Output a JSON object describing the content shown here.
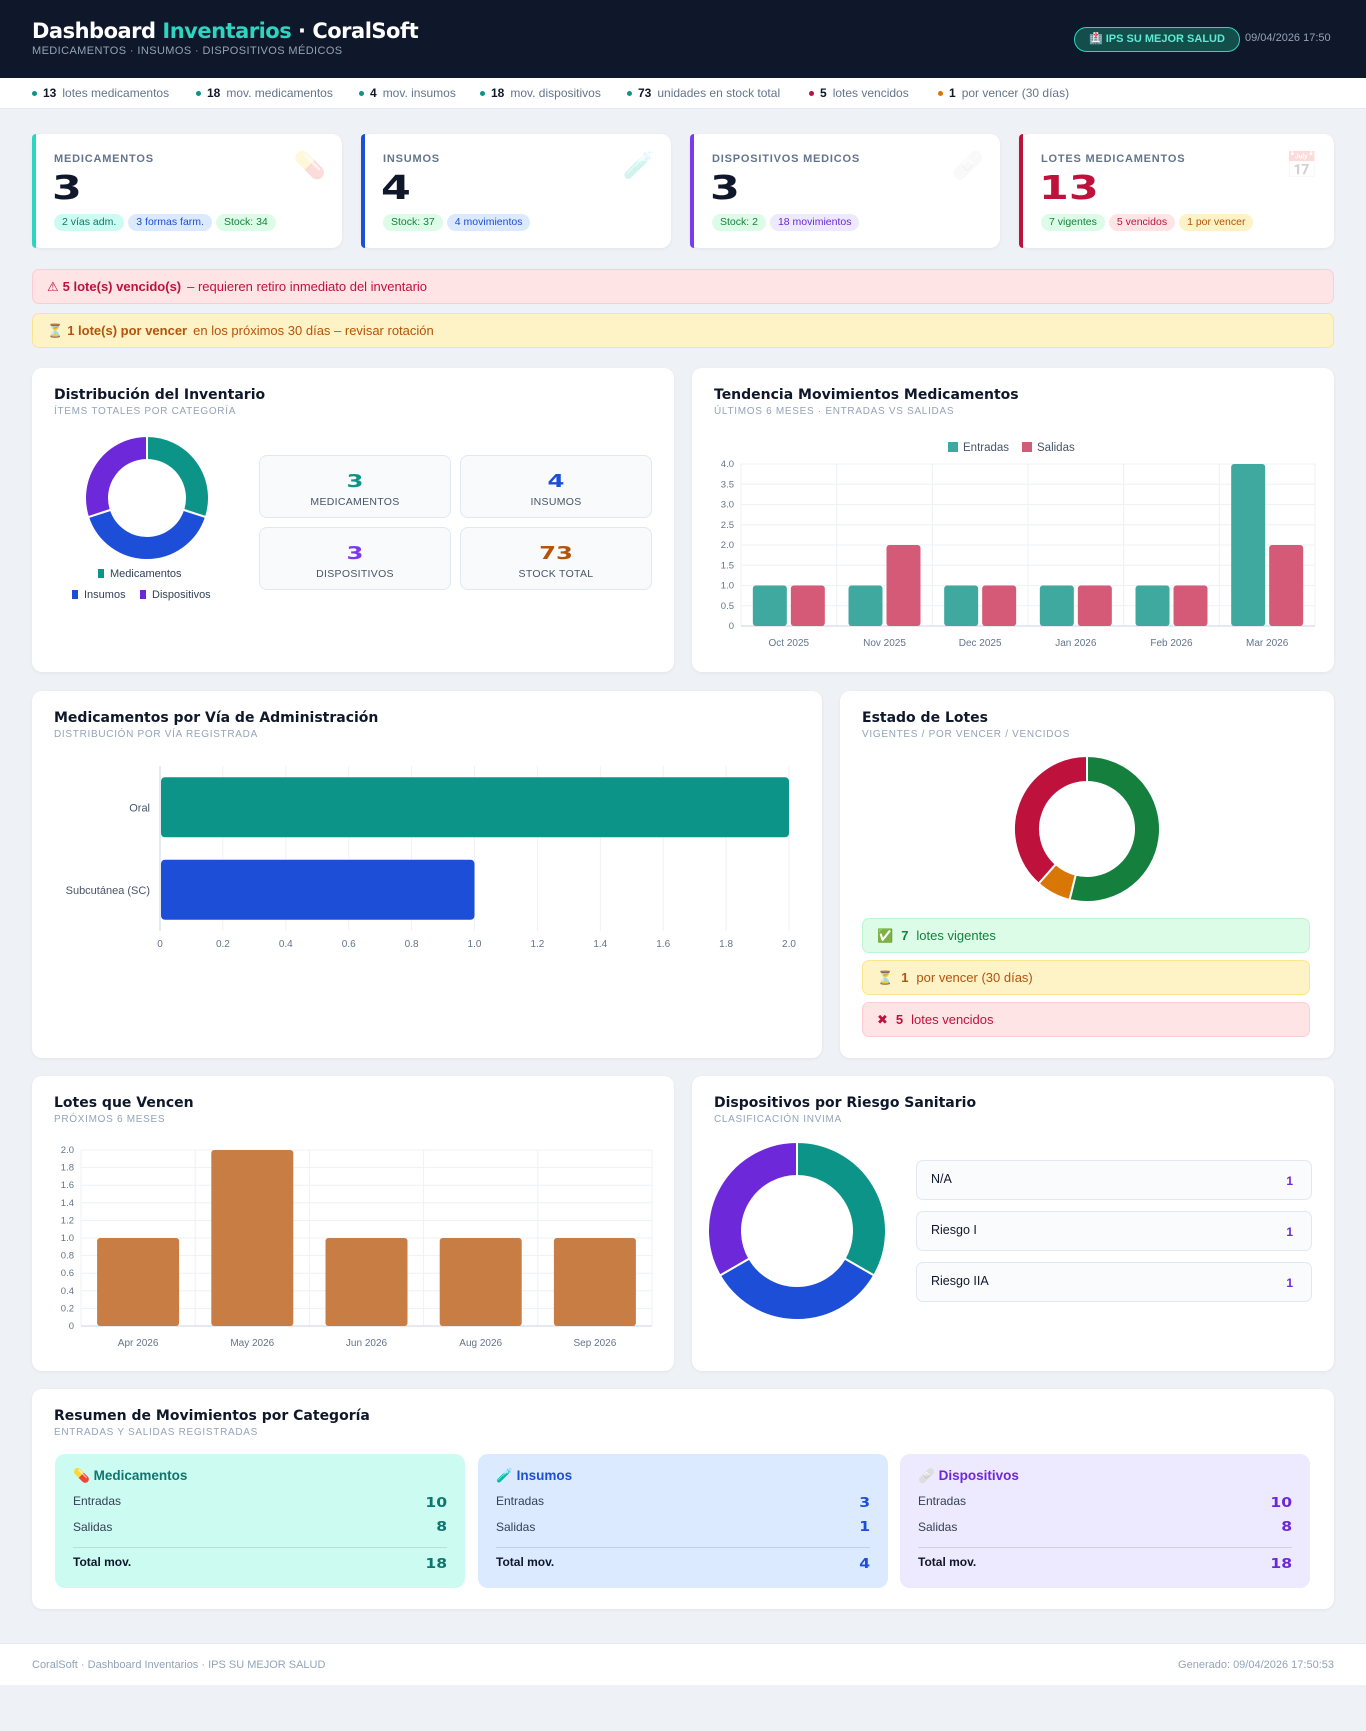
{
  "header": {
    "title_main": "Dashboard ",
    "title_accent": "Inventarios",
    "title_rest": " · CoralSoft",
    "subtitle": "MEDICAMENTOS · INSUMOS · DISPOSITIVOS MÉDICOS",
    "badge": "🏥 IPS SU MEJOR SALUD",
    "datetime": "09/04/2026 17:50"
  },
  "statbar": [
    {
      "value": "13",
      "label": "lotes medicamentos",
      "color": "#0d9488"
    },
    {
      "value": "18",
      "label": "mov. medicamentos",
      "color": "#0d9488"
    },
    {
      "value": "4",
      "label": "mov. insumos",
      "color": "#0d9488"
    },
    {
      "value": "18",
      "label": "mov. dispositivos",
      "color": "#0d9488"
    },
    {
      "value": "73",
      "label": "unidades en stock total",
      "color": "#0d9488"
    },
    {
      "value": "5",
      "label": "lotes vencidos",
      "color": "#be123c"
    },
    {
      "value": "1",
      "label": "por vencer (30 días)",
      "color": "#d97706"
    }
  ],
  "kpis": [
    {
      "label": "MEDICAMENTOS",
      "value": "3",
      "icon": "pill-icon",
      "icon_glyph": "💊",
      "accent": "#2dd4bf",
      "pills": [
        "2 vías adm.",
        "3 formas farm.",
        "Stock: 34"
      ]
    },
    {
      "label": "INSUMOS",
      "value": "4",
      "icon": "syringe-icon",
      "icon_glyph": "🧪",
      "accent": "#1d4ed8",
      "pills": [
        "Stock: 37",
        "4 movimientos"
      ]
    },
    {
      "label": "DISPOSITIVOS MEDICOS",
      "value": "3",
      "icon": "bandage-icon",
      "icon_glyph": "🩹",
      "accent": "#7c3aed",
      "pills": [
        "Stock: 2",
        "18 movimientos"
      ]
    },
    {
      "label": "LOTES MEDICAMENTOS",
      "value": "13",
      "icon": "calendar-icon",
      "icon_glyph": "📅",
      "accent": "#be123c",
      "pills": [
        "7 vigentes",
        "5 vencidos",
        "1 por vencer"
      ]
    }
  ],
  "alerts": {
    "expired": {
      "icon": "⚠",
      "strong": "5 lote(s) vencido(s)",
      "text": "– requieren retiro inmediato del inventario"
    },
    "expiring": {
      "icon": "⏳",
      "strong": "1 lote(s) por vencer",
      "text": "en los próximos 30 días – revisar rotación"
    }
  },
  "distribution": {
    "title": "Distribución del Inventario",
    "subtitle": "ÍTEMS TOTALES POR CATEGORÍA",
    "tiles": [
      {
        "value": "3",
        "label": "MEDICAMENTOS",
        "color": "#0d9488"
      },
      {
        "value": "4",
        "label": "INSUMOS",
        "color": "#1d4ed8"
      },
      {
        "value": "3",
        "label": "DISPOSITIVOS",
        "color": "#7c3aed"
      },
      {
        "value": "73",
        "label": "STOCK TOTAL",
        "color": "#b45309"
      }
    ],
    "legend": [
      "Medicamentos",
      "Insumos",
      "Dispositivos"
    ]
  },
  "trend": {
    "title": "Tendencia Movimientos Medicamentos",
    "subtitle": "ÚLTIMOS 6 MESES · ENTRADAS VS SALIDAS"
  },
  "routes": {
    "title": "Medicamentos por Vía de Administración",
    "subtitle": "DISTRIBUCIÓN POR VÍA REGISTRADA"
  },
  "lot_state": {
    "title": "Estado de Lotes",
    "subtitle": "VIGENTES / POR VENCER / VENCIDOS",
    "rows": [
      {
        "icon": "✅",
        "value": "7",
        "label": "lotes vigentes"
      },
      {
        "icon": "⏳",
        "value": "1",
        "label": "por vencer (30 días)"
      },
      {
        "icon": "✖",
        "value": "5",
        "label": "lotes vencidos"
      }
    ]
  },
  "expiring_lots": {
    "title": "Lotes que Vencen",
    "subtitle": "PRÓXIMOS 6 MESES"
  },
  "risk": {
    "title": "Dispositivos por Riesgo Sanitario",
    "subtitle": "CLASIFICACIÓN INVIMA",
    "rows": [
      {
        "label": "N/A",
        "value": "1"
      },
      {
        "label": "Riesgo I",
        "value": "1"
      },
      {
        "label": "Riesgo IIA",
        "value": "1"
      }
    ]
  },
  "movements": {
    "title": "Resumen de Movimientos por Categoría",
    "subtitle": "ENTRADAS Y SALIDAS REGISTRADAS",
    "cards": [
      {
        "icon_glyph": "💊",
        "title": "Medicamentos",
        "entradas_label": "Entradas",
        "entradas": "10",
        "salidas_label": "Salidas",
        "salidas": "8",
        "total_label": "Total mov.",
        "total": "18",
        "bg": "#ccfbf1",
        "fg": "#0f766e"
      },
      {
        "icon_glyph": "🧪",
        "title": "Insumos",
        "entradas_label": "Entradas",
        "entradas": "3",
        "salidas_label": "Salidas",
        "salidas": "1",
        "total_label": "Total mov.",
        "total": "4",
        "bg": "#dbeafe",
        "fg": "#1d4ed8"
      },
      {
        "icon_glyph": "🩹",
        "title": "Dispositivos",
        "entradas_label": "Entradas",
        "entradas": "10",
        "salidas_label": "Salidas",
        "salidas": "8",
        "total_label": "Total mov.",
        "total": "18",
        "bg": "#ede9fe",
        "fg": "#6d28d9"
      }
    ]
  },
  "footer": {
    "left": "CoralSoft · Dashboard Inventarios · IPS SU MEJOR SALUD",
    "right": "Generado: 09/04/2026 17:50:53"
  },
  "chart_data": [
    {
      "id": "distribution",
      "type": "pie",
      "categories": [
        "Medicamentos",
        "Insumos",
        "Dispositivos"
      ],
      "values": [
        3,
        4,
        3
      ],
      "colors": [
        "#0d9488",
        "#1d4ed8",
        "#6d28d9"
      ],
      "legend": "bottom"
    },
    {
      "id": "trend",
      "type": "bar",
      "categories": [
        "Oct 2025",
        "Nov 2025",
        "Dec 2025",
        "Jan 2026",
        "Feb 2026",
        "Mar 2026"
      ],
      "series": [
        {
          "name": "Entradas",
          "values": [
            1,
            1,
            1,
            1,
            1,
            4
          ],
          "color": "#3fa9a0"
        },
        {
          "name": "Salidas",
          "values": [
            1,
            2,
            1,
            1,
            1,
            2
          ],
          "color": "#d45a78"
        }
      ],
      "ylim": [
        0,
        4
      ],
      "yticks": [
        "0",
        "0.5",
        "1.0",
        "1.5",
        "2.0",
        "2.5",
        "3.0",
        "3.5",
        "4.0"
      ],
      "legend": "top",
      "grid": true
    },
    {
      "id": "routes",
      "type": "bar",
      "orientation": "horizontal",
      "categories": [
        "Oral",
        "Subcutánea (SC)"
      ],
      "values": [
        2,
        1
      ],
      "colors": [
        "#0d9488",
        "#1d4ed8"
      ],
      "xlim": [
        0,
        2
      ],
      "xticks": [
        "0",
        "0.2",
        "0.4",
        "0.6",
        "0.8",
        "1.0",
        "1.2",
        "1.4",
        "1.6",
        "1.8",
        "2.0"
      ],
      "grid": true
    },
    {
      "id": "lot_state",
      "type": "pie",
      "categories": [
        "Vigentes",
        "Por vencer",
        "Vencidos"
      ],
      "values": [
        7,
        1,
        5
      ],
      "colors": [
        "#15803d",
        "#d97706",
        "#be123c"
      ]
    },
    {
      "id": "expiring_lots",
      "type": "bar",
      "categories": [
        "Apr 2026",
        "May 2026",
        "Jun 2026",
        "Aug 2026",
        "Sep 2026"
      ],
      "values": [
        1,
        2,
        1,
        1,
        1
      ],
      "color": "#c87d45",
      "ylim": [
        0,
        2
      ],
      "yticks": [
        "0",
        "0.2",
        "0.4",
        "0.6",
        "0.8",
        "1.0",
        "1.2",
        "1.4",
        "1.6",
        "1.8",
        "2.0"
      ],
      "grid": true
    },
    {
      "id": "risk",
      "type": "pie",
      "categories": [
        "N/A",
        "Riesgo I",
        "Riesgo IIA"
      ],
      "values": [
        1,
        1,
        1
      ],
      "colors": [
        "#0d9488",
        "#1d4ed8",
        "#6d28d9"
      ]
    }
  ]
}
